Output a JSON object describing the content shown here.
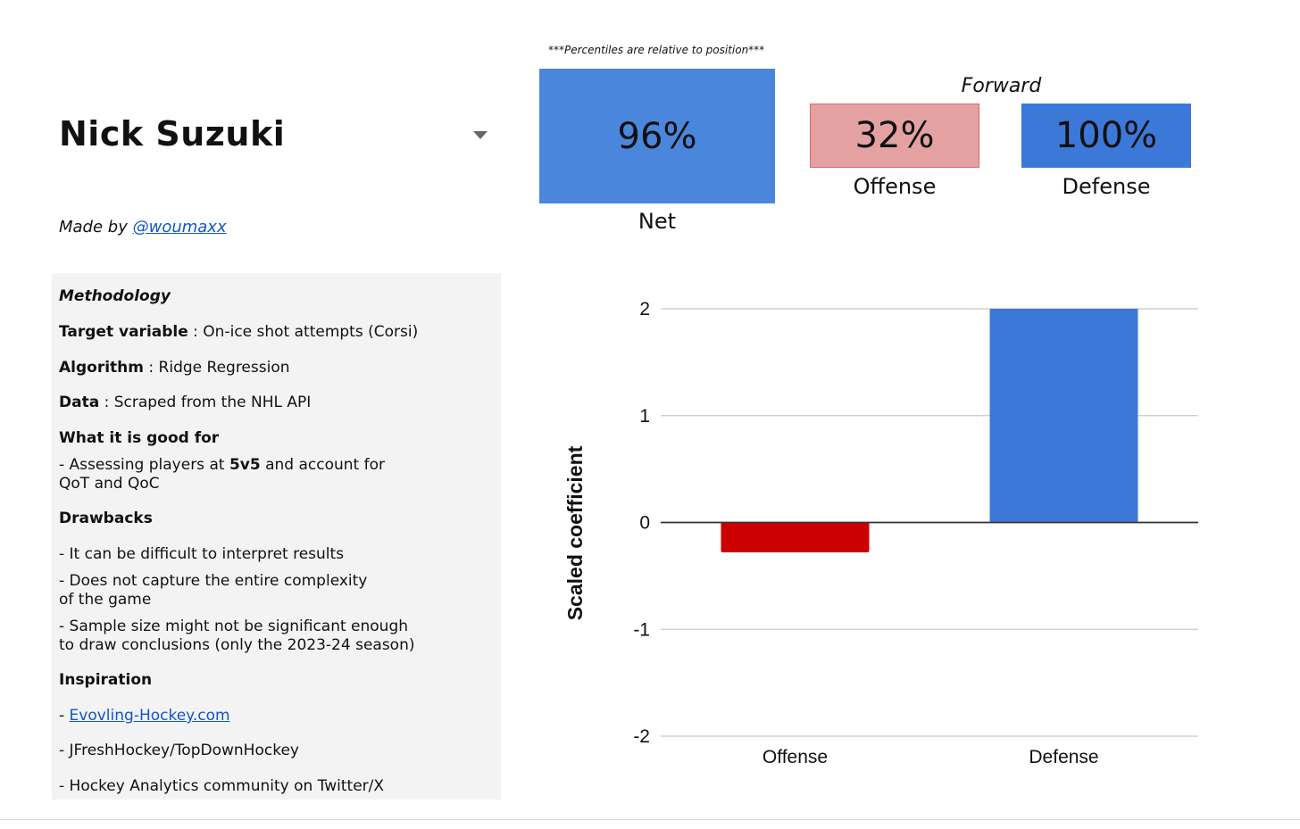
{
  "player": {
    "name": "Nick Suzuki"
  },
  "credit": {
    "prefix": "Made by ",
    "handle": "@woumaxx"
  },
  "methodology": {
    "title": "Methodology",
    "target_label": "Target variable",
    "target_value": " : On-ice shot attempts (Corsi)",
    "algorithm_label": "Algorithm",
    "algorithm_value": " : Ridge Regression",
    "data_label": "Data",
    "data_value": " : Scraped from the NHL API",
    "good_for_title": "What it is good for",
    "good_for_1a": "- Assessing players at ",
    "good_for_1b": "5v5",
    "good_for_1c": " and account for",
    "good_for_1d": "QoT and QoC",
    "drawbacks_title": "Drawbacks",
    "drawback_1": "- It can be difficult to interpret results",
    "drawback_2a": "- Does not capture the entire complexity",
    "drawback_2b": "of the game",
    "drawback_3a": "- Sample size might not be significant enough",
    "drawback_3b": "to draw conclusions (only the 2023-24 season)",
    "inspiration_title": "Inspiration",
    "inspiration_1_prefix": "- ",
    "inspiration_1_link": "Evovling-Hockey.com",
    "inspiration_2": "- JFreshHockey/TopDownHockey",
    "inspiration_3": "- Hockey Analytics community on Twitter/X"
  },
  "percentiles": {
    "note": "***Percentiles are relative to position***",
    "position": "Forward",
    "net": {
      "value": "96%",
      "label": "Net"
    },
    "offense": {
      "value": "32%",
      "label": "Offense"
    },
    "defense": {
      "value": "100%",
      "label": "Defense"
    }
  },
  "colors": {
    "net": "#4a86dc",
    "offense_tile": "#e3a1a2",
    "defense_tile": "#3c78d8",
    "offense_bar": "#cc0000",
    "defense_bar": "#3c78d8"
  },
  "chart_data": {
    "type": "bar",
    "categories": [
      "Offense",
      "Defense"
    ],
    "values": [
      -0.28,
      2.0
    ],
    "bar_colors": [
      "#cc0000",
      "#3c78d8"
    ],
    "ylabel": "Scaled coefficient",
    "xlabel": "",
    "ylim": [
      -2,
      2
    ],
    "yticks": [
      2,
      1,
      0,
      -1,
      -2
    ],
    "grid": true
  }
}
